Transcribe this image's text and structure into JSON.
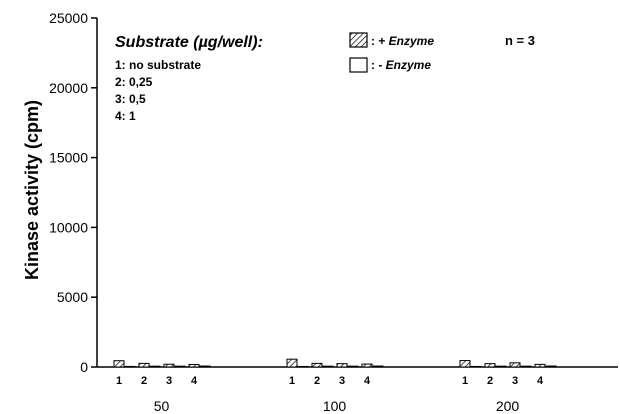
{
  "chart_data": {
    "type": "bar",
    "xlabel": "",
    "ylabel": "Kinase activity  (cpm)",
    "ylim": [
      0,
      25000
    ],
    "yticks": [
      "0",
      "5000",
      "10000",
      "15000",
      "20000",
      "25000"
    ],
    "groups": [
      "50",
      "100",
      "200"
    ],
    "subcategories": [
      "1",
      "2",
      "3",
      "4"
    ],
    "series": [
      {
        "name": "+ Enzyme",
        "pattern": "hatched",
        "values": [
          [
            450,
            260,
            200,
            180
          ],
          [
            560,
            260,
            240,
            210
          ],
          [
            460,
            240,
            300,
            190
          ]
        ]
      },
      {
        "name": "- Enzyme",
        "pattern": "open",
        "values": [
          [
            40,
            60,
            60,
            70
          ],
          [
            40,
            60,
            60,
            70
          ],
          [
            40,
            60,
            60,
            70
          ]
        ]
      }
    ],
    "annotations": {
      "substrate_title": "Substrate (µg/well):",
      "substrate_items": [
        "1:  no substrate",
        "2:  0,25",
        "3:  0,5",
        "4:  1"
      ],
      "legend_plus_prefix": ": + ",
      "legend_plus_word": "Enzyme",
      "legend_minus_prefix": ": -  ",
      "legend_minus_word": "Enzyme",
      "n_label": "n = 3"
    },
    "grid": false,
    "legend_position": "top-right"
  },
  "colors": {
    "axis": "#000000",
    "bar_fill": "#ffffff",
    "hatch": "#000000"
  }
}
